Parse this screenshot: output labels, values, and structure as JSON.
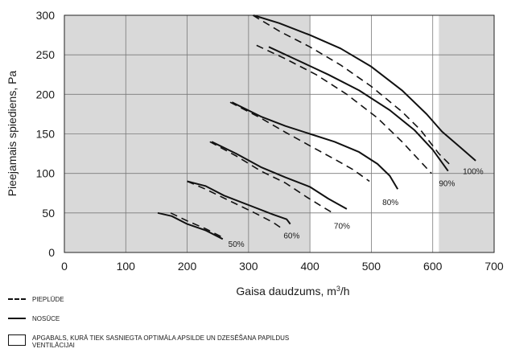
{
  "chart_data": {
    "type": "line",
    "xlabel_text": "Gaisa daudzums, m",
    "xlabel_sup": "3",
    "xlabel_unit": "/h",
    "ylabel": "Pieejamais spiediens, Pa",
    "xlim": [
      0,
      700
    ],
    "ylim": [
      0,
      300
    ],
    "x_ticks": [
      "0",
      "100",
      "200",
      "300",
      "400",
      "500",
      "600",
      "700"
    ],
    "y_ticks": [
      "0",
      "50",
      "100",
      "150",
      "200",
      "250",
      "300"
    ],
    "grid": true,
    "shaded_regions": [
      [
        0,
        400
      ],
      [
        610,
        700
      ]
    ],
    "colors": {
      "shade": "#d9d9d9",
      "line": "#111111",
      "grid": "#7a7a7a"
    },
    "series": [
      {
        "name": "50%",
        "style": "solid",
        "points": [
          [
            152,
            50
          ],
          [
            175,
            46
          ],
          [
            200,
            36
          ],
          [
            230,
            28
          ],
          [
            258,
            17
          ]
        ]
      },
      {
        "name": "50%",
        "style": "dashed",
        "points": [
          [
            173,
            50
          ],
          [
            200,
            40
          ],
          [
            230,
            30
          ],
          [
            258,
            19
          ]
        ]
      },
      {
        "name": "60%",
        "style": "solid",
        "points": [
          [
            200,
            90
          ],
          [
            230,
            84
          ],
          [
            260,
            72
          ],
          [
            300,
            60
          ],
          [
            340,
            48
          ],
          [
            362,
            42
          ],
          [
            368,
            36
          ]
        ]
      },
      {
        "name": "60%",
        "style": "dashed",
        "points": [
          [
            200,
            90
          ],
          [
            230,
            80
          ],
          [
            270,
            65
          ],
          [
            310,
            50
          ],
          [
            340,
            38
          ],
          [
            355,
            30
          ]
        ]
      },
      {
        "name": "70%",
        "style": "solid",
        "points": [
          [
            240,
            140
          ],
          [
            280,
            125
          ],
          [
            320,
            108
          ],
          [
            360,
            95
          ],
          [
            400,
            83
          ],
          [
            430,
            68
          ],
          [
            460,
            55
          ]
        ]
      },
      {
        "name": "70%",
        "style": "dashed",
        "points": [
          [
            237,
            140
          ],
          [
            280,
            122
          ],
          [
            320,
            103
          ],
          [
            360,
            88
          ],
          [
            395,
            70
          ],
          [
            420,
            58
          ],
          [
            437,
            50
          ]
        ]
      },
      {
        "name": "80%",
        "style": "solid",
        "points": [
          [
            273,
            190
          ],
          [
            320,
            172
          ],
          [
            360,
            160
          ],
          [
            400,
            150
          ],
          [
            440,
            140
          ],
          [
            480,
            127
          ],
          [
            510,
            112
          ],
          [
            530,
            97
          ],
          [
            543,
            80
          ]
        ]
      },
      {
        "name": "80%",
        "style": "dashed",
        "points": [
          [
            270,
            190
          ],
          [
            320,
            170
          ],
          [
            360,
            152
          ],
          [
            400,
            135
          ],
          [
            440,
            118
          ],
          [
            470,
            105
          ],
          [
            497,
            90
          ]
        ]
      },
      {
        "name": "90%",
        "style": "solid",
        "points": [
          [
            333,
            260
          ],
          [
            380,
            243
          ],
          [
            430,
            225
          ],
          [
            480,
            205
          ],
          [
            530,
            180
          ],
          [
            570,
            155
          ],
          [
            600,
            130
          ],
          [
            625,
            103
          ]
        ]
      },
      {
        "name": "90%",
        "style": "dashed",
        "points": [
          [
            313,
            262
          ],
          [
            360,
            245
          ],
          [
            410,
            225
          ],
          [
            460,
            200
          ],
          [
            510,
            170
          ],
          [
            550,
            140
          ],
          [
            580,
            115
          ],
          [
            598,
            100
          ]
        ]
      },
      {
        "name": "100%",
        "style": "solid",
        "points": [
          [
            308,
            300
          ],
          [
            350,
            290
          ],
          [
            400,
            275
          ],
          [
            450,
            258
          ],
          [
            500,
            235
          ],
          [
            550,
            205
          ],
          [
            590,
            175
          ],
          [
            615,
            153
          ],
          [
            645,
            133
          ],
          [
            670,
            116
          ]
        ]
      },
      {
        "name": "100%",
        "style": "dashed",
        "points": [
          [
            307,
            300
          ],
          [
            350,
            280
          ],
          [
            400,
            260
          ],
          [
            450,
            237
          ],
          [
            500,
            210
          ],
          [
            550,
            178
          ],
          [
            580,
            155
          ],
          [
            610,
            125
          ],
          [
            632,
            108
          ]
        ]
      }
    ],
    "curve_labels": [
      {
        "text": "50%",
        "x": 267,
        "y": 10
      },
      {
        "text": "60%",
        "x": 357,
        "y": 21
      },
      {
        "text": "70%",
        "x": 439,
        "y": 33
      },
      {
        "text": "80%",
        "x": 518,
        "y": 63
      },
      {
        "text": "90%",
        "x": 610,
        "y": 87
      },
      {
        "text": "100%",
        "x": 649,
        "y": 102
      }
    ]
  },
  "legend": {
    "dashed": "PIEPLŪDE",
    "solid": "NOSŪCE",
    "box": "APGABALS, KURĀ TIEK SASNIEGTA OPTIMĀLA APSILDE UN DZESĒŠANA PAPILDUS VENTILĀCIJAI"
  }
}
